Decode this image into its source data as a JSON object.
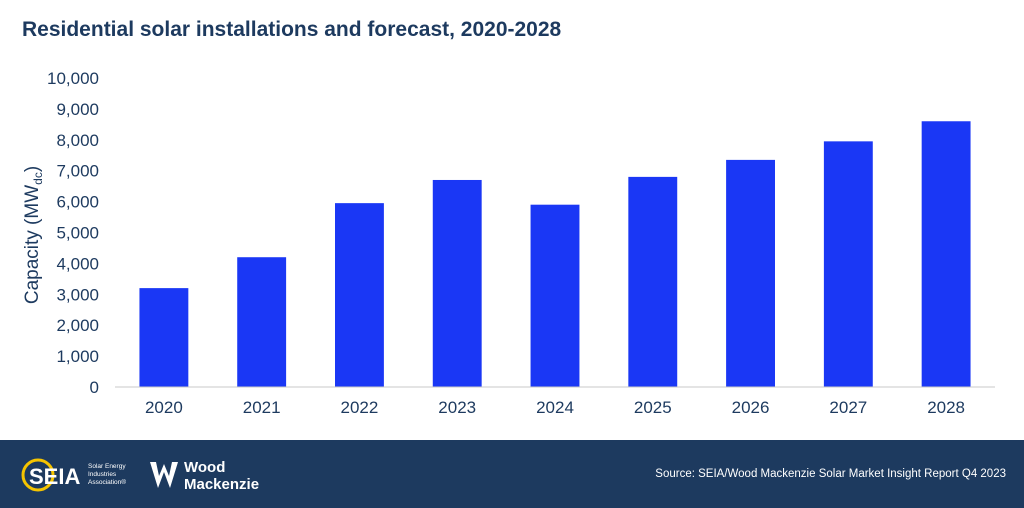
{
  "title": "Residential solar installations and forecast, 2020-2028",
  "chart_data": {
    "type": "bar",
    "title": "Residential solar installations and forecast, 2020-2028",
    "categories": [
      "2020",
      "2021",
      "2022",
      "2023",
      "2024",
      "2025",
      "2026",
      "2027",
      "2028"
    ],
    "values": [
      3200,
      4200,
      5950,
      6700,
      5900,
      6800,
      7350,
      7950,
      8600
    ],
    "ylabel_main": "Capacity (MW",
    "ylabel_sub": "dc",
    "ylabel_end": ")",
    "ylim": [
      0,
      10000
    ],
    "yticks": [
      "0",
      "1,000",
      "2,000",
      "3,000",
      "4,000",
      "5,000",
      "6,000",
      "7,000",
      "8,000",
      "9,000",
      "10,000"
    ],
    "grid": false,
    "legend": "none",
    "bar_color": "#1a37f5",
    "axis_text_color": "#1d3a5f"
  },
  "footer": {
    "background": "#1d3a5f",
    "seia": {
      "wordmark": "SEIA",
      "line1": "Solar Energy",
      "line2": "Industries",
      "line3": "Association®",
      "accent": "#f5c400"
    },
    "woodmackenzie": {
      "line1": "Wood",
      "line2": "Mackenzie"
    },
    "source": "Source: SEIA/Wood Mackenzie Solar Market Insight Report Q4 2023"
  }
}
